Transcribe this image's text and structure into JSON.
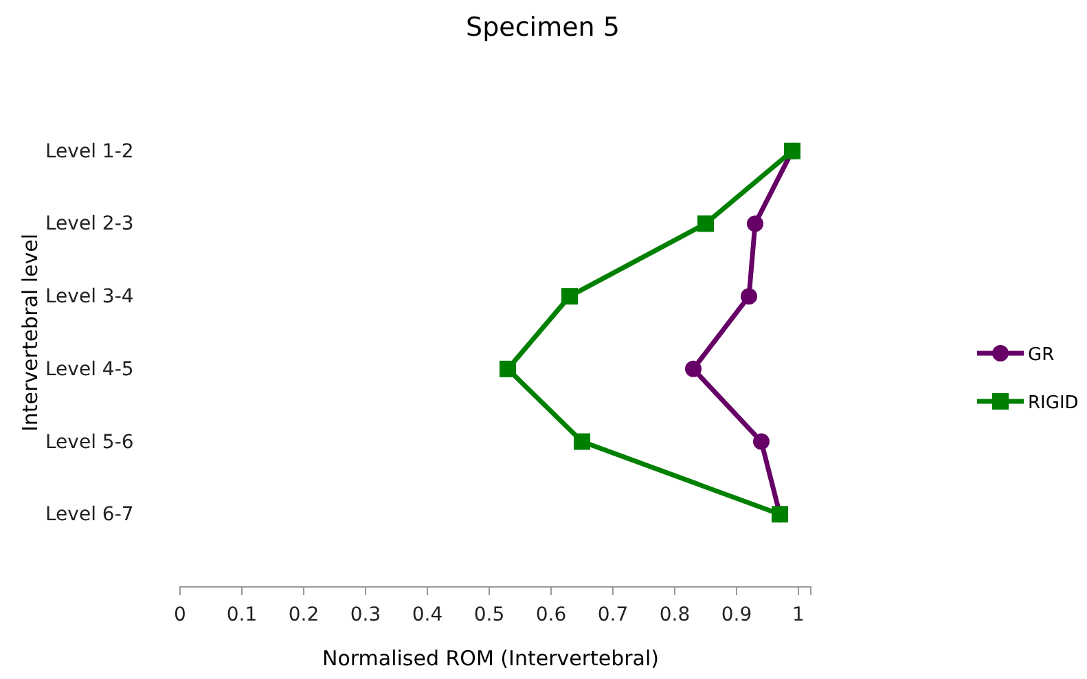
{
  "chart_data": {
    "type": "line",
    "title": "Specimen 5",
    "xlabel": "Normalised ROM (Intervertebral)",
    "ylabel": "Intervertebral level",
    "orientation": "horizontal",
    "categories": [
      "Level 1-2",
      "Level 2-3",
      "Level 3-4",
      "Level 4-5",
      "Level 5-6",
      "Level 6-7"
    ],
    "xlim": [
      0,
      1.02
    ],
    "xticks": [
      0,
      0.1,
      0.2,
      0.3,
      0.4,
      0.5,
      0.6,
      0.7,
      0.8,
      0.9,
      1
    ],
    "legend": "right",
    "grid": false,
    "line_style": "solid",
    "series": [
      {
        "name": "GR",
        "color": "#660066",
        "marker": "circle",
        "values": [
          0.99,
          0.93,
          0.92,
          0.83,
          0.94,
          0.97
        ]
      },
      {
        "name": "RIGID",
        "color": "#008000",
        "marker": "square",
        "values": [
          0.99,
          0.85,
          0.63,
          0.53,
          0.65,
          0.97
        ]
      }
    ]
  }
}
